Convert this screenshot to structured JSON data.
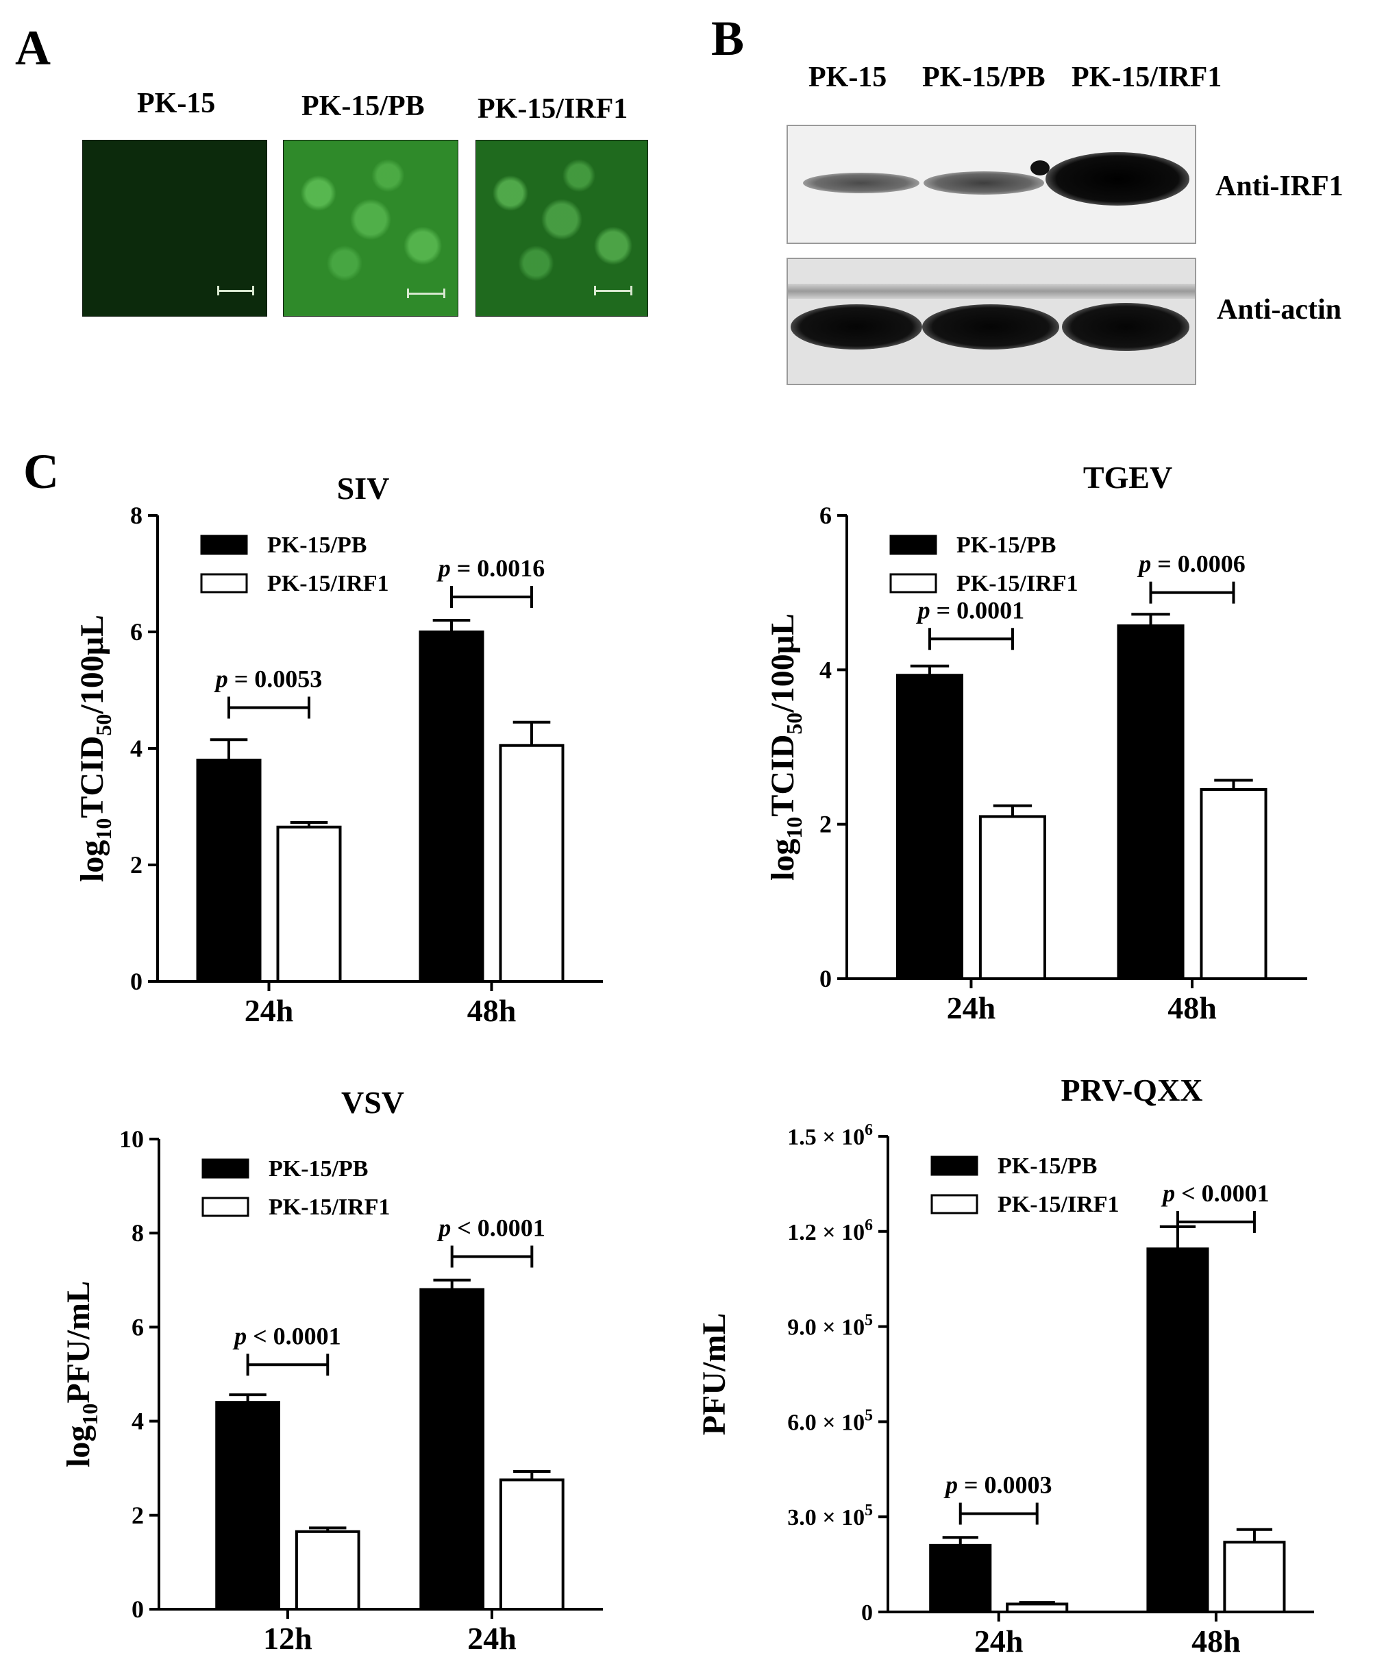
{
  "panel_a": {
    "letter": "A",
    "images": [
      {
        "label": "PK-15",
        "fill": "#0c2a0c"
      },
      {
        "label": "PK-15/PB",
        "fill": "#2f8a2a"
      },
      {
        "label": "PK-15/IRF1",
        "fill": "#1f6a1e"
      }
    ]
  },
  "panel_b": {
    "letter": "B",
    "lanes": [
      "PK-15",
      "PK-15/PB",
      "PK-15/IRF1"
    ],
    "rows": [
      {
        "label": "Anti-IRF1"
      },
      {
        "label": "Anti-actin"
      }
    ]
  },
  "panel_c": {
    "letter": "C"
  },
  "chart_data": [
    {
      "type": "bar",
      "title": "SIV",
      "ylabel_parts": [
        "log",
        "10",
        "TCID",
        "50",
        "/100μL"
      ],
      "categories": [
        "24h",
        "48h"
      ],
      "ylim": [
        0,
        8
      ],
      "yticks": [
        "0",
        "2",
        "4",
        "6",
        "8"
      ],
      "series": [
        {
          "name": "PK-15/PB",
          "values": [
            3.8,
            6.0
          ],
          "errors": [
            0.35,
            0.2
          ],
          "color": "#000000"
        },
        {
          "name": "PK-15/IRF1",
          "values": [
            2.65,
            4.05
          ],
          "errors": [
            0.08,
            0.4
          ],
          "color": "#ffffff"
        }
      ],
      "annotations": [
        {
          "category": 0,
          "text_p": "p",
          "text_rest": " = 0.0053",
          "y": 4.7
        },
        {
          "category": 1,
          "text_p": "p",
          "text_rest": " = 0.0016",
          "y": 6.6
        }
      ],
      "legend": "top-left"
    },
    {
      "type": "bar",
      "title": "TGEV",
      "ylabel_parts": [
        "log",
        "10",
        "TCID",
        "50",
        "/100μL"
      ],
      "categories": [
        "24h",
        "48h"
      ],
      "ylim": [
        0,
        6
      ],
      "yticks": [
        "0",
        "2",
        "4",
        "6"
      ],
      "series": [
        {
          "name": "PK-15/PB",
          "values": [
            3.93,
            4.57
          ],
          "errors": [
            0.12,
            0.15
          ],
          "color": "#000000"
        },
        {
          "name": "PK-15/IRF1",
          "values": [
            2.1,
            2.45
          ],
          "errors": [
            0.14,
            0.12
          ],
          "color": "#ffffff"
        }
      ],
      "annotations": [
        {
          "category": 0,
          "text_p": "p",
          "text_rest": " = 0.0001",
          "y": 4.4
        },
        {
          "category": 1,
          "text_p": "p",
          "text_rest": " = 0.0006",
          "y": 5.0
        }
      ],
      "legend": "top-left"
    },
    {
      "type": "bar",
      "title": "VSV",
      "ylabel_parts": [
        "log",
        "10",
        "PFU/mL",
        "",
        ""
      ],
      "categories": [
        "12h",
        "24h"
      ],
      "ylim": [
        0,
        10
      ],
      "yticks": [
        "0",
        "2",
        "4",
        "6",
        "8",
        "10"
      ],
      "series": [
        {
          "name": "PK-15/PB",
          "values": [
            4.4,
            6.8
          ],
          "errors": [
            0.16,
            0.2
          ],
          "color": "#000000"
        },
        {
          "name": "PK-15/IRF1",
          "values": [
            1.65,
            2.75
          ],
          "errors": [
            0.08,
            0.18
          ],
          "color": "#ffffff"
        }
      ],
      "annotations": [
        {
          "category": 0,
          "text_p": "p",
          "text_rest": " < 0.0001",
          "y": 5.2
        },
        {
          "category": 1,
          "text_p": "p",
          "text_rest": " < 0.0001",
          "y": 7.5
        }
      ],
      "legend": "top-left"
    },
    {
      "type": "bar",
      "title": "PRV-QXX",
      "ylabel_parts": [
        "PFU/mL",
        "",
        "",
        "",
        ""
      ],
      "categories": [
        "24h",
        "48h"
      ],
      "ylim": [
        0,
        1500000
      ],
      "yticks": [
        "0",
        "3.0 × 10^5",
        "6.0 × 10^5",
        "9.0 × 10^5",
        "1.2 × 10^6",
        "1.5 × 10^6"
      ],
      "series": [
        {
          "name": "PK-15/PB",
          "values": [
            210000,
            1145000
          ],
          "errors": [
            25000,
            70000
          ],
          "color": "#000000"
        },
        {
          "name": "PK-15/IRF1",
          "values": [
            25000,
            220000
          ],
          "errors": [
            5000,
            40000
          ],
          "color": "#ffffff"
        }
      ],
      "annotations": [
        {
          "category": 0,
          "text_p": "p",
          "text_rest": " = 0.0003",
          "y": 310000
        },
        {
          "category": 1,
          "text_p": "p",
          "text_rest": " < 0.0001",
          "y": 1230000
        }
      ],
      "legend": "top-left"
    }
  ]
}
